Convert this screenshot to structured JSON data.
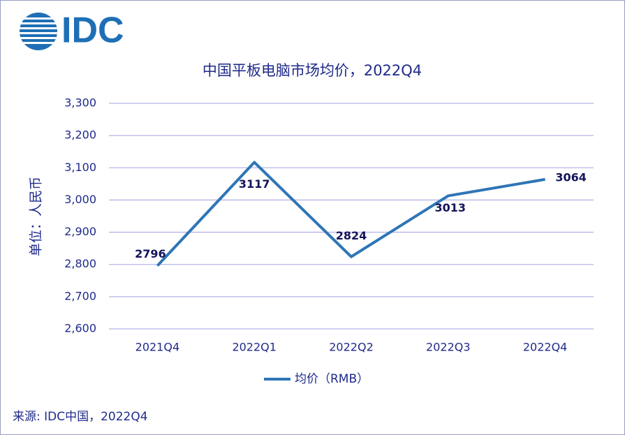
{
  "logo": "IDC",
  "chart_data": {
    "type": "line",
    "title": "中国平板电脑市场均价，2022Q4",
    "y_label": "单位：人民币",
    "categories": [
      "2021Q4",
      "2022Q1",
      "2022Q2",
      "2022Q3",
      "2022Q4"
    ],
    "series": [
      {
        "name": "均价（RMB）",
        "color": "#2e75b6",
        "values": [
          2796,
          3117,
          2824,
          3013,
          3064
        ]
      }
    ],
    "ylim": [
      2600,
      3300
    ],
    "yticks": [
      {
        "value": 2600,
        "label": "2,600"
      },
      {
        "value": 2700,
        "label": "2,700"
      },
      {
        "value": 2800,
        "label": "2,800"
      },
      {
        "value": 2900,
        "label": "2,900"
      },
      {
        "value": 3000,
        "label": "3,000"
      },
      {
        "value": 3100,
        "label": "3,100"
      },
      {
        "value": 3200,
        "label": "3,200"
      },
      {
        "value": 3300,
        "label": "3,300"
      }
    ],
    "grid": true,
    "legend": "bottom",
    "source": "来源: IDC中国，2022Q4"
  }
}
